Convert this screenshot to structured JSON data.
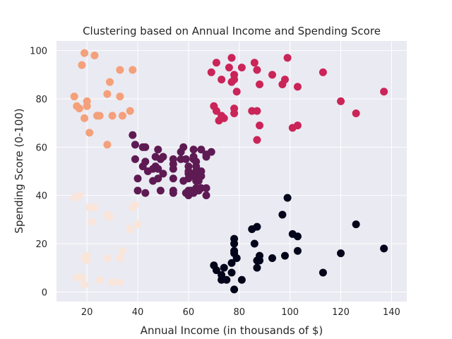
{
  "chart_data": {
    "type": "scatter",
    "title": "Clustering based on Annual Income and Spending Score",
    "xlabel": "Annual Income (in thousands of $)",
    "ylabel": "Spending Score (0-100)",
    "xlim": [
      8,
      146
    ],
    "ylim": [
      -4,
      104
    ],
    "x_ticks": [
      20,
      40,
      60,
      80,
      100,
      120,
      140
    ],
    "y_ticks": [
      0,
      20,
      40,
      60,
      80,
      100
    ],
    "grid": true,
    "legend": "none",
    "series": [
      {
        "color": "#f4a07a",
        "points": [
          [
            15,
            81
          ],
          [
            16,
            77
          ],
          [
            17,
            76
          ],
          [
            18,
            94
          ],
          [
            19,
            72
          ],
          [
            19,
            99
          ],
          [
            20,
            77
          ],
          [
            20,
            79
          ],
          [
            21,
            66
          ],
          [
            23,
            98
          ],
          [
            24,
            73
          ],
          [
            25,
            73
          ],
          [
            28,
            82
          ],
          [
            28,
            61
          ],
          [
            29,
            87
          ],
          [
            30,
            73
          ],
          [
            33,
            81
          ],
          [
            33,
            92
          ],
          [
            34,
            73
          ],
          [
            37,
            75
          ],
          [
            38,
            92
          ]
        ]
      },
      {
        "color": "#ca2458",
        "points": [
          [
            69,
            91
          ],
          [
            70,
            77
          ],
          [
            71,
            95
          ],
          [
            71,
            75
          ],
          [
            72,
            71
          ],
          [
            73,
            73
          ],
          [
            73,
            88
          ],
          [
            74,
            72
          ],
          [
            76,
            93
          ],
          [
            77,
            87
          ],
          [
            77,
            97
          ],
          [
            78,
            74
          ],
          [
            78,
            90
          ],
          [
            78,
            88
          ],
          [
            78,
            76
          ],
          [
            79,
            83
          ],
          [
            81,
            93
          ],
          [
            85,
            75
          ],
          [
            86,
            95
          ],
          [
            87,
            75
          ],
          [
            87,
            63
          ],
          [
            87,
            92
          ],
          [
            88,
            86
          ],
          [
            88,
            69
          ],
          [
            93,
            90
          ],
          [
            97,
            86
          ],
          [
            98,
            88
          ],
          [
            99,
            97
          ],
          [
            101,
            68
          ],
          [
            103,
            85
          ],
          [
            103,
            69
          ],
          [
            113,
            91
          ],
          [
            120,
            79
          ],
          [
            126,
            74
          ],
          [
            137,
            83
          ]
        ]
      },
      {
        "color": "#5e1a53",
        "points": [
          [
            38,
            65
          ],
          [
            39,
            61
          ],
          [
            39,
            55
          ],
          [
            40,
            47
          ],
          [
            40,
            42
          ],
          [
            42,
            52
          ],
          [
            42,
            60
          ],
          [
            43,
            60
          ],
          [
            43,
            54
          ],
          [
            43,
            41
          ],
          [
            44,
            50
          ],
          [
            46,
            46
          ],
          [
            46,
            51
          ],
          [
            47,
            52
          ],
          [
            47,
            56
          ],
          [
            48,
            59
          ],
          [
            48,
            47
          ],
          [
            48,
            51
          ],
          [
            49,
            55
          ],
          [
            49,
            42
          ],
          [
            50,
            49
          ],
          [
            50,
            56
          ],
          [
            54,
            47
          ],
          [
            54,
            53
          ],
          [
            54,
            42
          ],
          [
            54,
            51
          ],
          [
            54,
            55
          ],
          [
            54,
            41
          ],
          [
            57,
            58
          ],
          [
            57,
            55
          ],
          [
            58,
            60
          ],
          [
            58,
            46
          ],
          [
            59,
            55
          ],
          [
            59,
            41
          ],
          [
            60,
            49
          ],
          [
            60,
            40
          ],
          [
            60,
            42
          ],
          [
            60,
            52
          ],
          [
            60,
            47
          ],
          [
            60,
            50
          ],
          [
            61,
            42
          ],
          [
            61,
            49
          ],
          [
            62,
            41
          ],
          [
            62,
            48
          ],
          [
            62,
            59
          ],
          [
            62,
            55
          ],
          [
            62,
            56
          ],
          [
            62,
            42
          ],
          [
            63,
            50
          ],
          [
            63,
            46
          ],
          [
            63,
            43
          ],
          [
            63,
            48
          ],
          [
            63,
            52
          ],
          [
            63,
            54
          ],
          [
            64,
            42
          ],
          [
            64,
            46
          ],
          [
            65,
            48
          ],
          [
            65,
            50
          ],
          [
            65,
            43
          ],
          [
            65,
            59
          ],
          [
            67,
            43
          ],
          [
            67,
            57
          ],
          [
            67,
            56
          ],
          [
            67,
            40
          ],
          [
            69,
            58
          ]
        ]
      },
      {
        "color": "#fae5da",
        "points": [
          [
            15,
            39
          ],
          [
            16,
            6
          ],
          [
            17,
            40
          ],
          [
            18,
            6
          ],
          [
            19,
            3
          ],
          [
            19,
            14
          ],
          [
            20,
            15
          ],
          [
            20,
            13
          ],
          [
            21,
            35
          ],
          [
            22,
            29
          ],
          [
            23,
            35
          ],
          [
            25,
            5
          ],
          [
            28,
            14
          ],
          [
            28,
            32
          ],
          [
            29,
            31
          ],
          [
            30,
            4
          ],
          [
            33,
            4
          ],
          [
            33,
            14
          ],
          [
            34,
            17
          ],
          [
            37,
            26
          ],
          [
            38,
            35
          ],
          [
            39,
            36
          ],
          [
            40,
            28
          ]
        ]
      },
      {
        "color": "#03051a",
        "points": [
          [
            70,
            11
          ],
          [
            71,
            9
          ],
          [
            73,
            5
          ],
          [
            73,
            7
          ],
          [
            74,
            10
          ],
          [
            75,
            5
          ],
          [
            77,
            12
          ],
          [
            77,
            8
          ],
          [
            78,
            22
          ],
          [
            78,
            17
          ],
          [
            78,
            20
          ],
          [
            78,
            16
          ],
          [
            78,
            1
          ],
          [
            79,
            14
          ],
          [
            81,
            5
          ],
          [
            85,
            26
          ],
          [
            86,
            20
          ],
          [
            87,
            27
          ],
          [
            87,
            13
          ],
          [
            87,
            10
          ],
          [
            88,
            13
          ],
          [
            88,
            15
          ],
          [
            93,
            14
          ],
          [
            97,
            32
          ],
          [
            98,
            15
          ],
          [
            99,
            39
          ],
          [
            101,
            24
          ],
          [
            103,
            17
          ],
          [
            103,
            23
          ],
          [
            113,
            8
          ],
          [
            120,
            16
          ],
          [
            126,
            28
          ],
          [
            137,
            18
          ]
        ]
      }
    ]
  }
}
